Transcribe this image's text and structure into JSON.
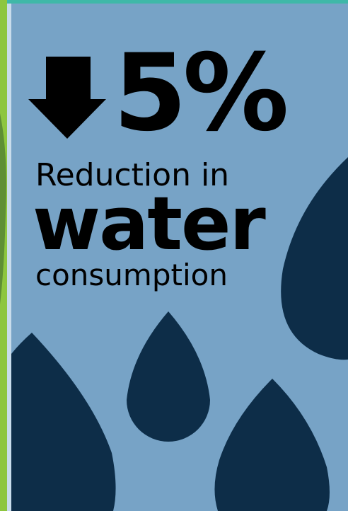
{
  "stat": {
    "value": "5%",
    "line1": "Reduction in",
    "line2": "water",
    "line3": "consumption"
  }
}
